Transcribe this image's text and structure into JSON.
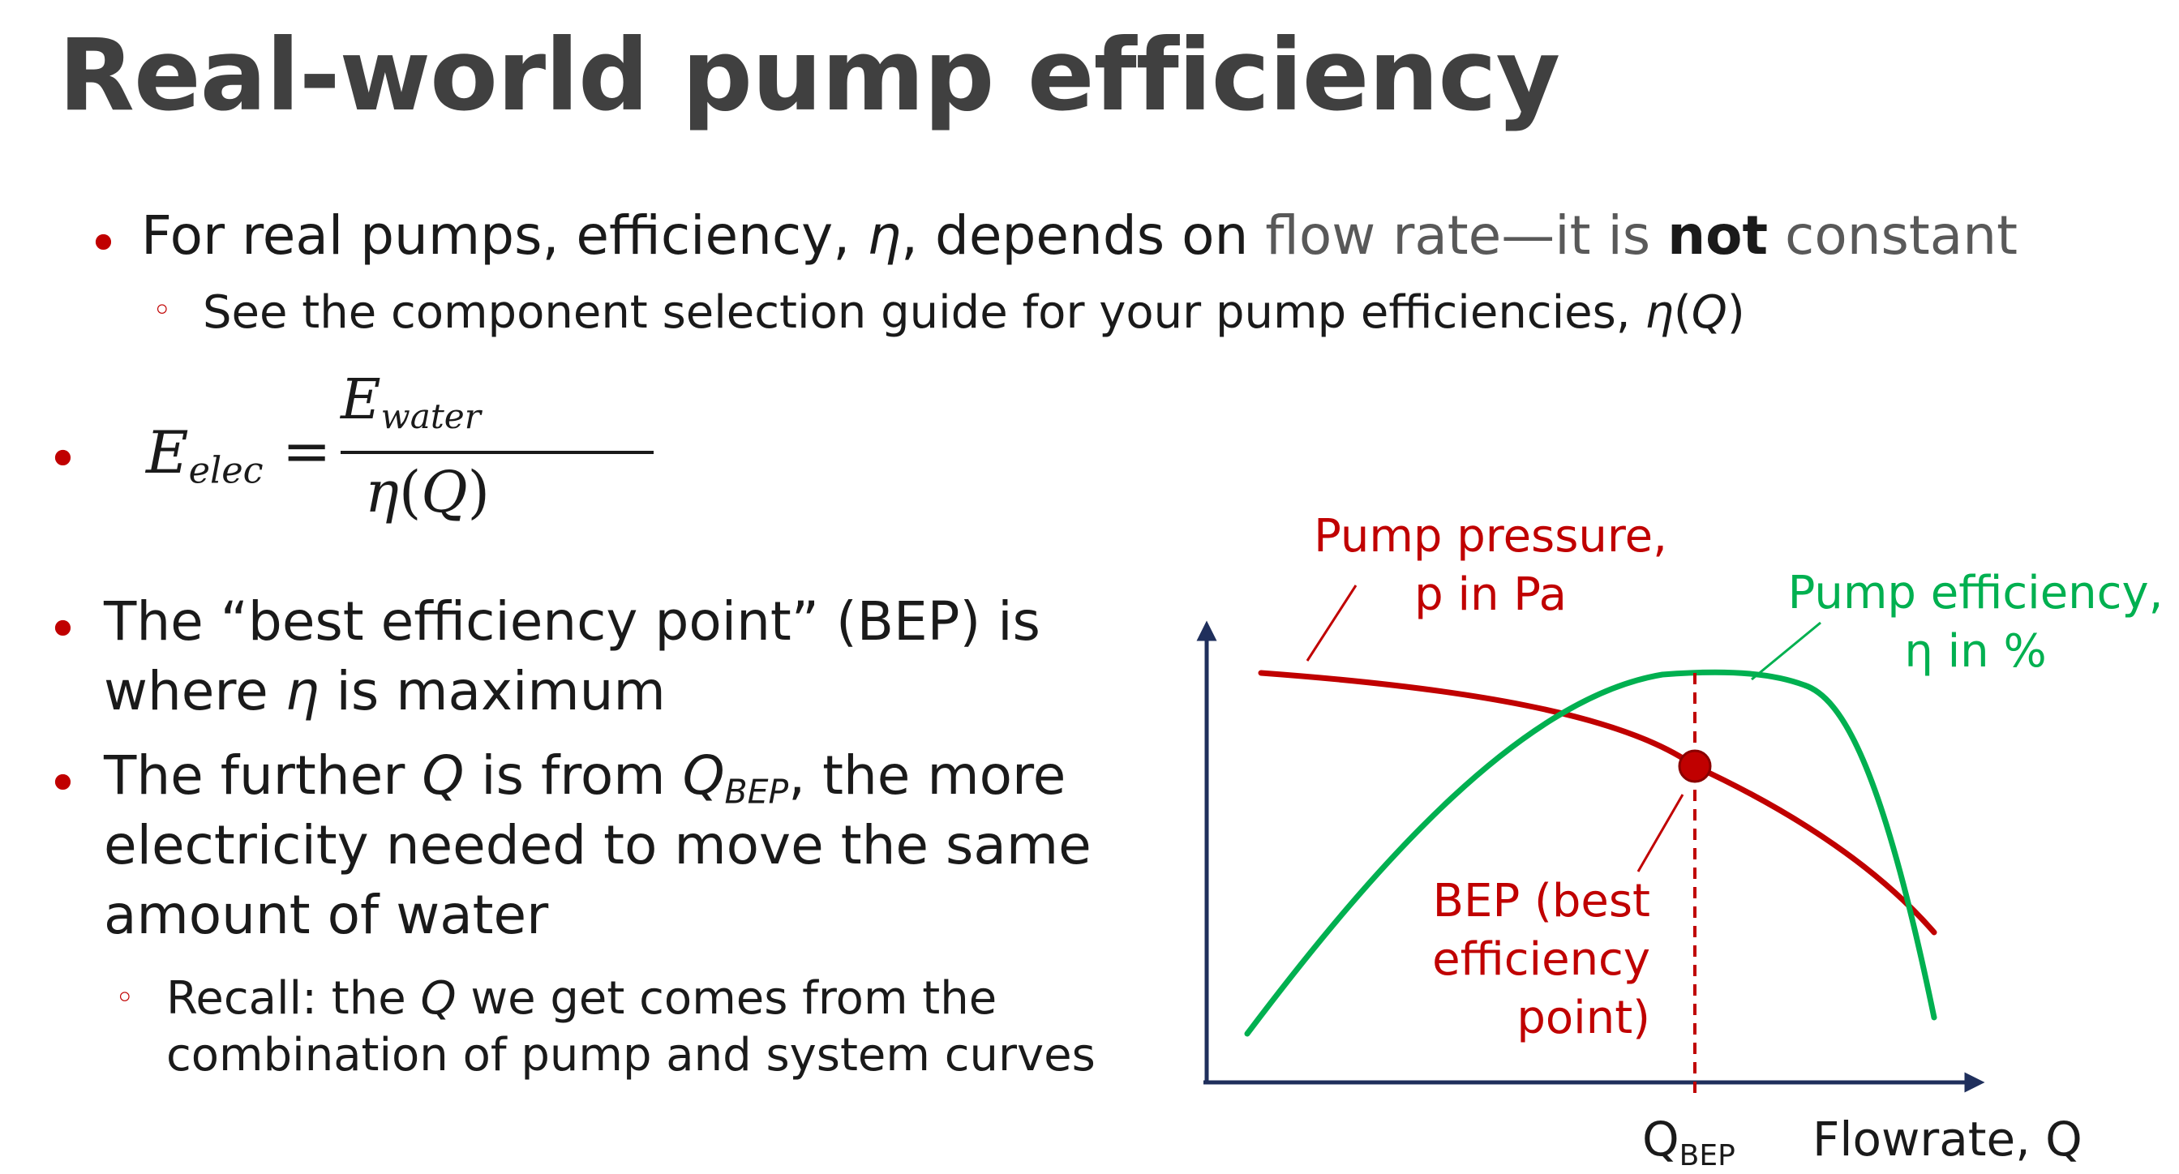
{
  "title": "Real-world pump efficiency",
  "bullet1": {
    "part_a": "For real pumps, efficiency, ",
    "eta": "η",
    "part_b": ", depends on ",
    "part_c": "flow rate—it is ",
    "bold": "not",
    "part_d": " constant"
  },
  "sub1": {
    "text": "See the component selection guide for your pump efficiencies, ",
    "eta": "η",
    "open": "(",
    "q": "Q",
    "close": ")"
  },
  "equation": {
    "lhs_var": "E",
    "lhs_sub": "elec",
    "equals": "=",
    "num_var": "E",
    "num_sub": "water",
    "den_eta": "η",
    "den_open": "(",
    "den_q": "Q",
    "den_close": ")"
  },
  "bullet3": {
    "line1": "The “best efficiency point” (BEP) is",
    "line2_a": "where ",
    "line2_eta": "η",
    "line2_b": " is maximum"
  },
  "bullet4": {
    "line1_a": "The further ",
    "line1_q": "Q",
    "line1_b": " is from ",
    "line1_qbep": "Q",
    "line1_qbep_sub": "BEP",
    "line1_c": ", the more",
    "line2": "electricity needed to move the same",
    "line3": "amount of water"
  },
  "sub2": {
    "line1_a": "Recall: the ",
    "line1_q": "Q",
    "line1_b": " we get comes from the",
    "line2": "combination of pump and system curves"
  },
  "diagram": {
    "pump_pressure_label": [
      "Pump pressure,",
      "p in Pa"
    ],
    "pump_efficiency_label": [
      "Pump efficiency,",
      "η in %"
    ],
    "bep_label": [
      "BEP (best",
      "efficiency",
      "point)"
    ],
    "q_bep_label": "Q",
    "q_bep_sub": "BEP",
    "x_axis_label": "Flowrate, Q"
  },
  "colors": {
    "accent_red": "#c00000",
    "curve_red": "#c00000",
    "curve_green": "#00b050",
    "axis": "#1f2f5c",
    "title_gray": "#404040"
  },
  "icons": {
    "bullet": "filled-dot",
    "sub_bullet": "hollow-circle"
  }
}
